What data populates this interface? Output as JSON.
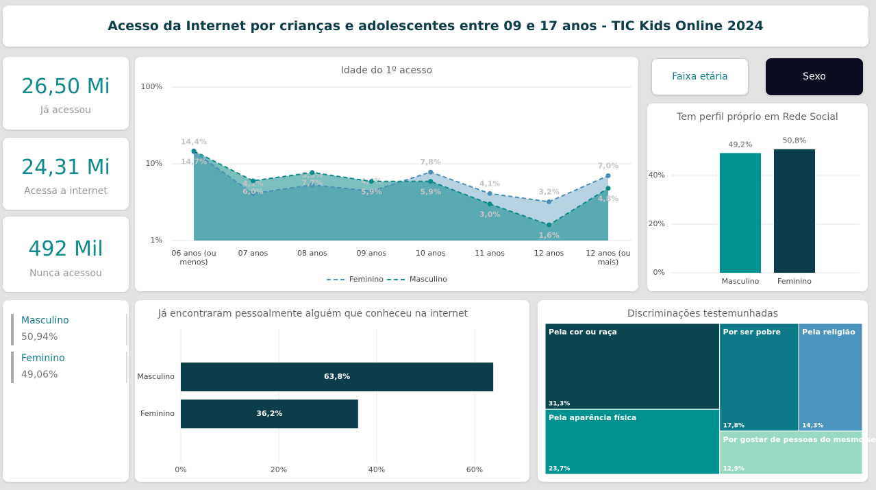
{
  "header": {
    "title": "Acesso da Internet por crianças e adolescentes entre 09 e 17 anos - TIC Kids Online 2024"
  },
  "kpis": [
    {
      "value": "26,50 Mi",
      "label": "Já acessou"
    },
    {
      "value": "24,31 Mi",
      "label": "Acessa a internet"
    },
    {
      "value": "492 Mil",
      "label": "Nunca acessou"
    }
  ],
  "buttons": [
    "Faixa etária",
    "Sexo"
  ],
  "gender_list": [
    {
      "name": "Masculino",
      "share": "50,94%"
    },
    {
      "name": "Feminino",
      "share": "49,06%"
    }
  ],
  "chart_data": [
    {
      "type": "line",
      "title": "Idade do 1º acesso",
      "categories": [
        "06 anos (ou menos)",
        "07 anos",
        "08 anos",
        "09 anos",
        "10 anos",
        "11 anos",
        "12 anos",
        "12 anos (ou mais)"
      ],
      "log_scale": true,
      "ylim": [
        1,
        100
      ],
      "yticks": [
        {
          "value": 1,
          "label": "1%"
        },
        {
          "value": 10,
          "label": "10%"
        },
        {
          "value": 100,
          "label": "100%"
        }
      ],
      "grid": true,
      "series": [
        {
          "name": "Feminino",
          "color": "#4a8fb5",
          "values": [
            14.4,
            4.1,
            5.3,
            4.4,
            7.8,
            4.1,
            3.2,
            7.0
          ],
          "value_labels": [
            "14,4%",
            "4,1%",
            "5,3%",
            "4,4%",
            "7,8%",
            "4,1%",
            "3,2%",
            "7,0%"
          ]
        },
        {
          "name": "Masculino",
          "color": "#0e8a8a",
          "values": [
            14.7,
            6.0,
            7.7,
            5.9,
            5.9,
            3.0,
            1.6,
            4.8
          ],
          "value_labels": [
            "14,7%",
            "6,0%",
            "7,7%",
            "5,9%",
            "5,9%",
            "3,0%",
            "1,6%",
            "4,8%"
          ]
        }
      ]
    },
    {
      "type": "bar",
      "title": "Tem perfil próprio em Rede Social",
      "categories": [
        "Masculino",
        "Feminino"
      ],
      "values": [
        49.2,
        50.8
      ],
      "value_labels": [
        "49,2%",
        "50,8%"
      ],
      "colors": [
        "#009191",
        "#0b3d4a"
      ],
      "ylim": [
        0,
        60
      ],
      "yticks": [
        {
          "value": 0,
          "label": "0%"
        },
        {
          "value": 20,
          "label": "20%"
        },
        {
          "value": 40,
          "label": "40%"
        }
      ],
      "grid": true
    },
    {
      "type": "hbar",
      "title": "Já encontraram pessoalmente alguém que conheceu na internet",
      "categories": [
        "Masculino",
        "Feminino"
      ],
      "values": [
        63.8,
        36.2
      ],
      "value_labels": [
        "63,8%",
        "36,2%"
      ],
      "color": "#0b3d4a",
      "xlim": [
        0,
        70
      ],
      "xticks": [
        {
          "value": 0,
          "label": "0%"
        },
        {
          "value": 20,
          "label": "20%"
        },
        {
          "value": 40,
          "label": "40%"
        },
        {
          "value": 60,
          "label": "60%"
        }
      ],
      "grid": true
    },
    {
      "type": "treemap",
      "title": "Discriminações testemunhadas",
      "categories": [
        "Pela cor ou raça",
        "Pela aparência física",
        "Por ser pobre",
        "Pela religião",
        "Por gostar de pessoas do mesmo se..."
      ],
      "values": [
        31.3,
        23.7,
        17.8,
        14.3,
        12.9
      ],
      "value_labels": [
        "31,3%",
        "23,7%",
        "17,8%",
        "14,3%",
        "12,9%"
      ],
      "colors": [
        "#0b4650",
        "#009191",
        "#0e7a88",
        "#4a94bd",
        "#98d9c2"
      ]
    }
  ]
}
